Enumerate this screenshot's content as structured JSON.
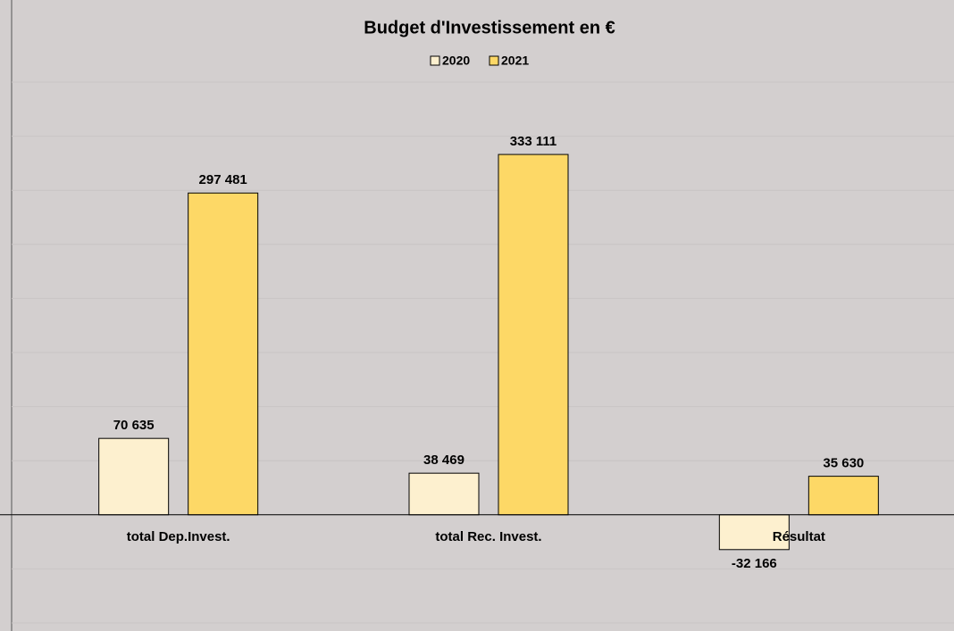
{
  "chart_data": {
    "type": "bar",
    "title": "Budget d'Investissement en €",
    "categories": [
      "total Dep.Invest.",
      "total Rec. Invest.",
      "Résultat"
    ],
    "series": [
      {
        "name": "2020",
        "color": "#fdf0cf",
        "values": [
          70635,
          38469,
          -32166
        ],
        "value_labels": [
          "70 635",
          "38 469",
          "-32 166"
        ]
      },
      {
        "name": "2021",
        "color": "#fdd866",
        "values": [
          297481,
          333111,
          35630
        ],
        "value_labels": [
          "297 481",
          "333 111",
          "35 630"
        ]
      }
    ],
    "ylim": [
      -100000,
      400000
    ],
    "yticks": [
      -100000,
      -50000,
      0,
      50000,
      100000,
      150000,
      200000,
      250000,
      300000,
      350000,
      400000
    ],
    "grid": true,
    "legend": "top"
  }
}
